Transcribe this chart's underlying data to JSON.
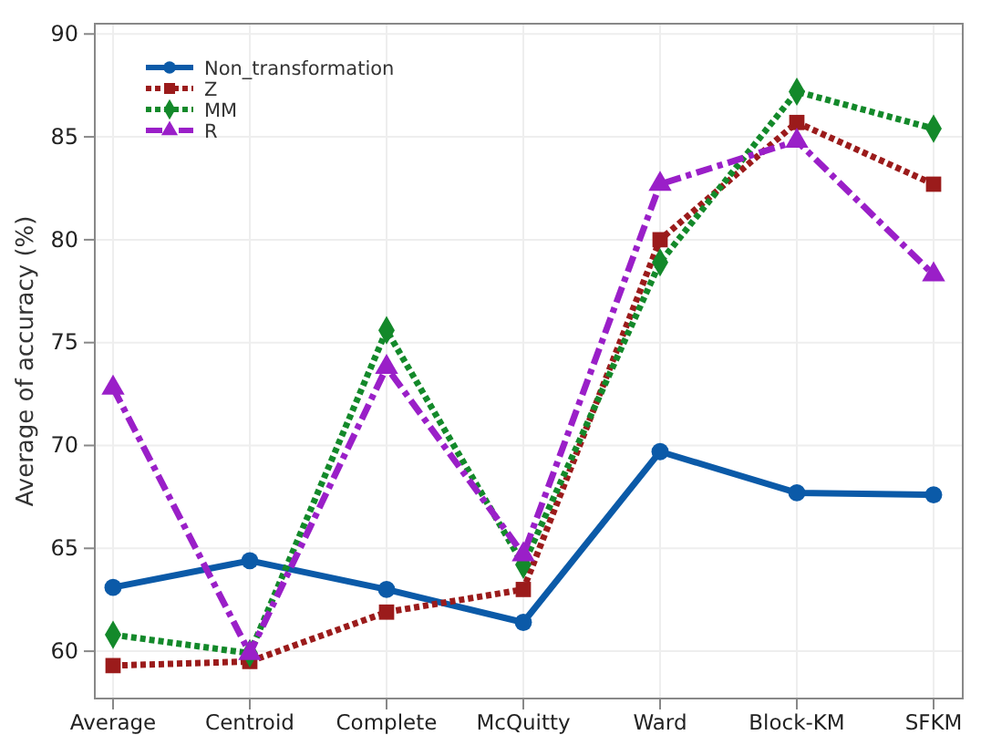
{
  "chart_data": {
    "type": "line",
    "ylabel": "Average of accuracy (%)",
    "categories": [
      "Average",
      "Centroid",
      "Complete",
      "McQuitty",
      "Ward",
      "Block-KM",
      "SFKM"
    ],
    "series": [
      {
        "name": "Non_transformation",
        "color": "#0b5aa8",
        "marker": "circle",
        "line_style": "solid",
        "values": [
          63.1,
          64.4,
          63.0,
          61.4,
          69.7,
          67.7,
          67.6
        ]
      },
      {
        "name": "Z",
        "color": "#9b1b1b",
        "marker": "square",
        "line_style": "dotted",
        "values": [
          59.3,
          59.5,
          61.9,
          63.0,
          80.0,
          85.7,
          82.7
        ]
      },
      {
        "name": "MM",
        "color": "#13892a",
        "marker": "diamond",
        "line_style": "dotted",
        "values": [
          60.8,
          59.9,
          75.6,
          64.2,
          78.9,
          87.2,
          85.4
        ]
      },
      {
        "name": "R",
        "color": "#9a1fc8",
        "marker": "triangle",
        "line_style": "dashed",
        "values": [
          72.8,
          59.9,
          73.8,
          64.7,
          82.7,
          84.8,
          78.3
        ]
      }
    ],
    "ylim": [
      57.7,
      90.5
    ],
    "yticks": [
      60,
      65,
      70,
      75,
      80,
      85,
      90
    ],
    "grid": true,
    "legend": "top left"
  }
}
